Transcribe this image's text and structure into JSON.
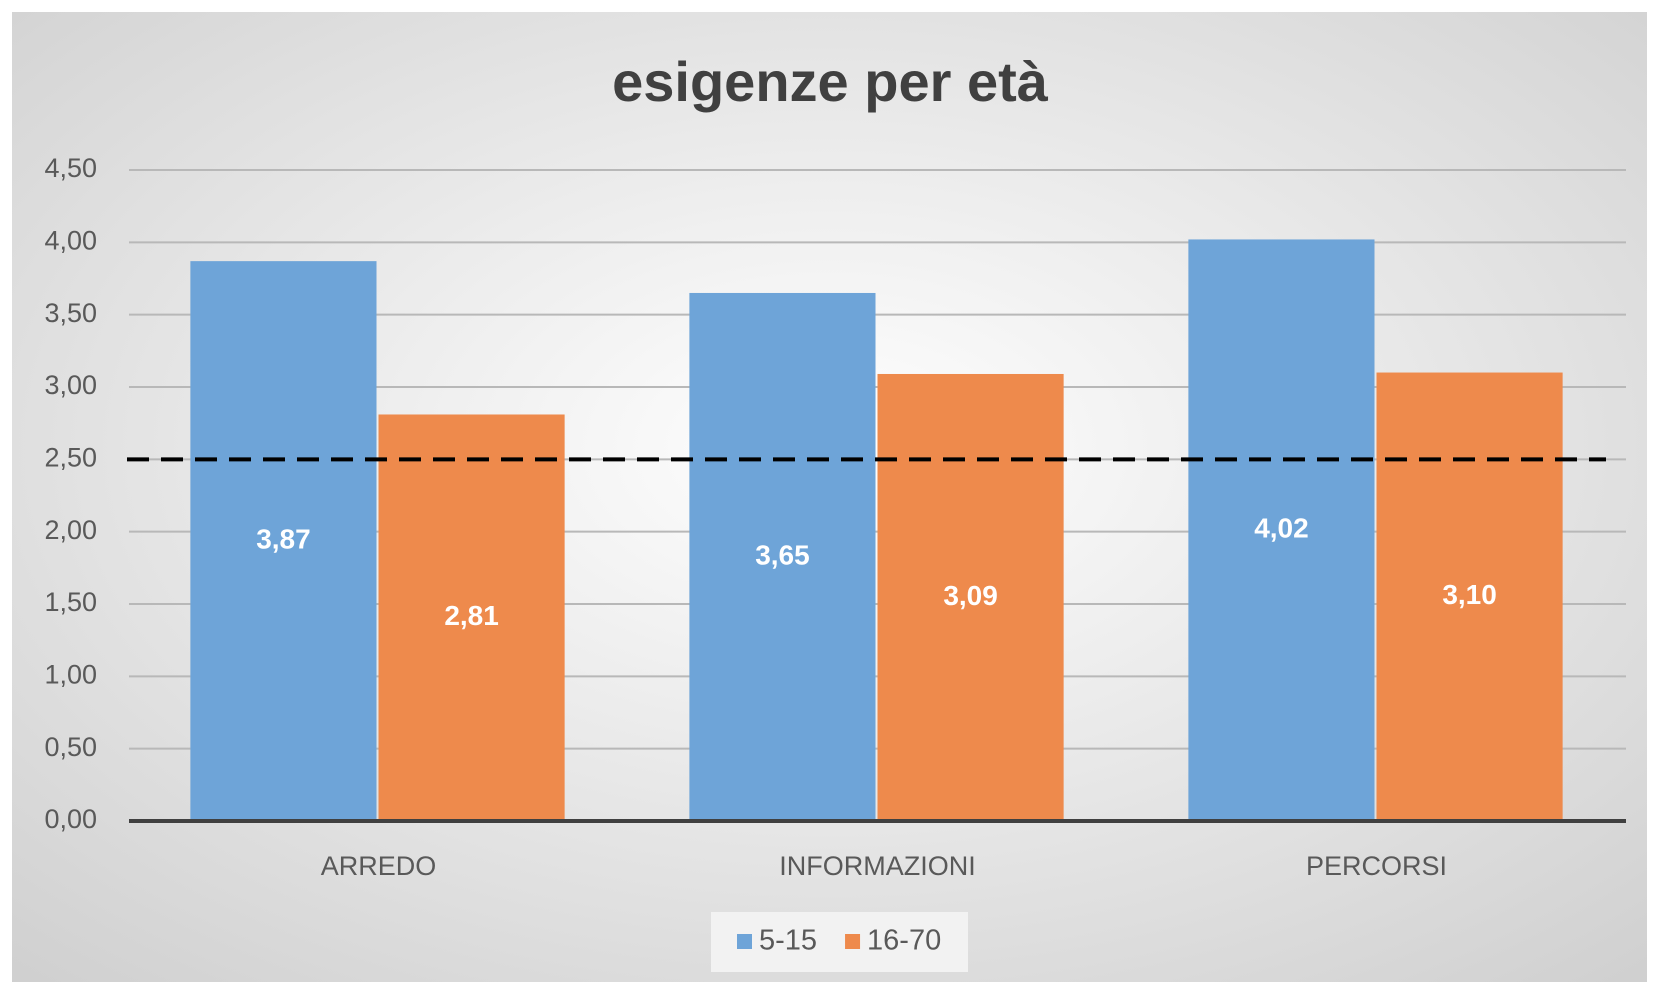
{
  "chart_data": {
    "type": "bar",
    "title": "esigenze per età",
    "categories": [
      "ARREDO",
      "INFORMAZIONI",
      "PERCORSI"
    ],
    "series": [
      {
        "name": "5-15",
        "color": "#6ea4d8",
        "values": [
          3.87,
          3.65,
          4.02
        ],
        "value_labels": [
          "3,87",
          "3,65",
          "4,02"
        ]
      },
      {
        "name": "16-70",
        "color": "#ee8a4c",
        "values": [
          2.81,
          3.09,
          3.1
        ],
        "value_labels": [
          "2,81",
          "3,09",
          "3,10"
        ]
      }
    ],
    "reference_line": 2.5,
    "ylim": [
      0,
      4.5
    ],
    "yticks": [
      {
        "value": 0,
        "label": "0,00"
      },
      {
        "value": 0.5,
        "label": "0,50"
      },
      {
        "value": 1,
        "label": "1,00"
      },
      {
        "value": 1.5,
        "label": "1,50"
      },
      {
        "value": 2,
        "label": "2,00"
      },
      {
        "value": 2.5,
        "label": "2,50"
      },
      {
        "value": 3,
        "label": "3,00"
      },
      {
        "value": 3.5,
        "label": "3,50"
      },
      {
        "value": 4,
        "label": "4,00"
      },
      {
        "value": 4.5,
        "label": "4,50"
      }
    ],
    "grid": true,
    "legend": "bottom"
  }
}
